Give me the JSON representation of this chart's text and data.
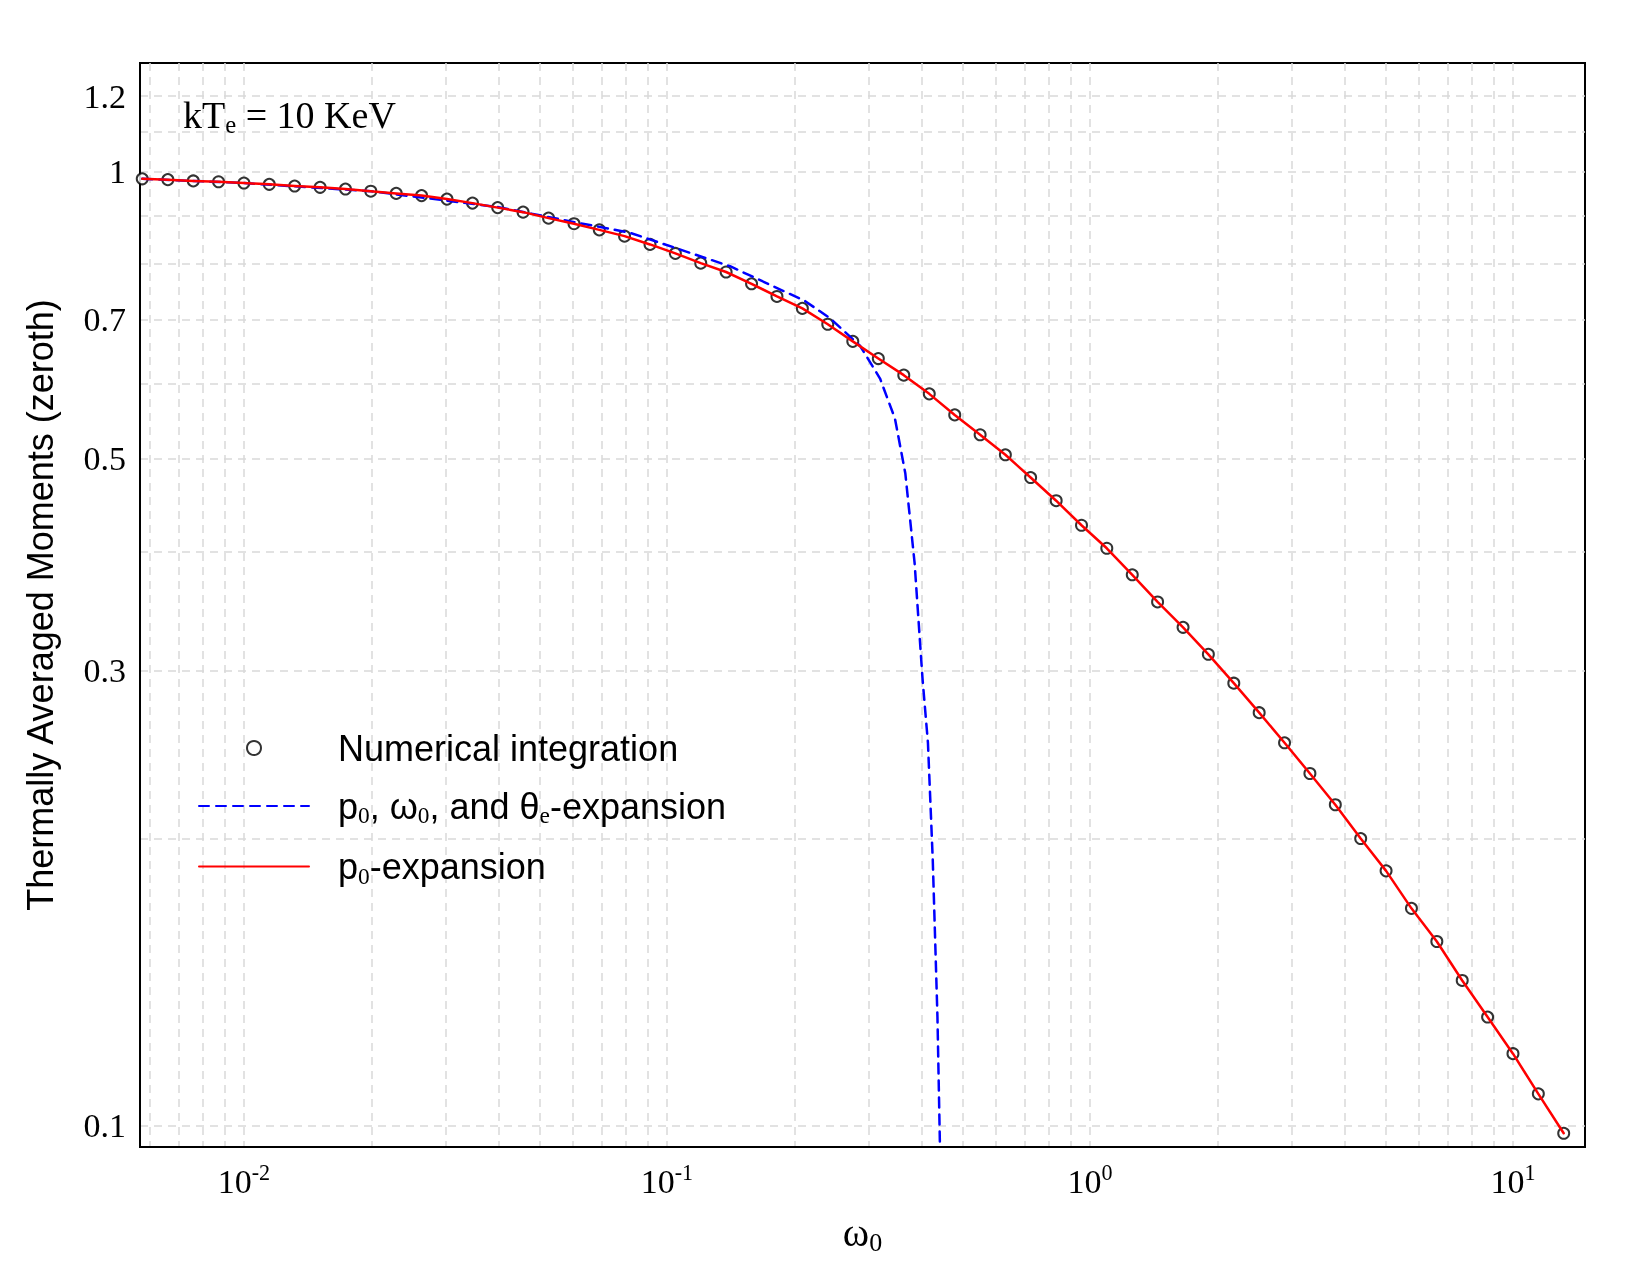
{
  "chart_data": {
    "type": "line",
    "xlabel": "ω$_{0}$",
    "ylabel": "Thermally Averaged Moments (zeroth)",
    "annotations": [
      "kT$_{e}$ = 10 KeV"
    ],
    "log": "xy",
    "grid": true,
    "legend": "bottom left",
    "xlim": [
      0.00568,
      14.8
    ],
    "ylim": [
      0.095,
      1.3
    ],
    "xticks": [
      {
        "value": 0.006,
        "label": null
      },
      {
        "value": 0.007,
        "label": null
      },
      {
        "value": 0.008,
        "label": null
      },
      {
        "value": 0.009,
        "label": null
      },
      {
        "value": 0.01,
        "label": "10$^{-2}$"
      },
      {
        "value": 0.02,
        "label": null
      },
      {
        "value": 0.03,
        "label": null
      },
      {
        "value": 0.04,
        "label": null
      },
      {
        "value": 0.05,
        "label": null
      },
      {
        "value": 0.06,
        "label": null
      },
      {
        "value": 0.07,
        "label": null
      },
      {
        "value": 0.08,
        "label": null
      },
      {
        "value": 0.09,
        "label": null
      },
      {
        "value": 0.1,
        "label": "10$^{-1}$"
      },
      {
        "value": 0.2,
        "label": null
      },
      {
        "value": 0.3,
        "label": null
      },
      {
        "value": 0.4,
        "label": null
      },
      {
        "value": 0.5,
        "label": null
      },
      {
        "value": 0.6,
        "label": null
      },
      {
        "value": 0.7,
        "label": null
      },
      {
        "value": 0.8,
        "label": null
      },
      {
        "value": 0.9,
        "label": null
      },
      {
        "value": 1,
        "label": "10$^{0}$"
      },
      {
        "value": 2,
        "label": null
      },
      {
        "value": 3,
        "label": null
      },
      {
        "value": 4,
        "label": null
      },
      {
        "value": 5,
        "label": null
      },
      {
        "value": 6,
        "label": null
      },
      {
        "value": 7,
        "label": null
      },
      {
        "value": 8,
        "label": null
      },
      {
        "value": 9,
        "label": null
      },
      {
        "value": 10,
        "label": "10$^{1}$"
      }
    ],
    "yticks": [
      0.1,
      {
        "value": 0.2,
        "label": null
      },
      0.3,
      {
        "value": 0.4,
        "label": null
      },
      0.5,
      {
        "value": 0.6,
        "label": null
      },
      0.7,
      {
        "value": 0.8,
        "label": null
      },
      {
        "value": 0.9,
        "label": null
      },
      1,
      {
        "value": 1.1,
        "label": null
      },
      1.2
    ],
    "series": [
      {
        "name": "Numerical integration",
        "type": "scatter",
        "marker": "circle",
        "color": "#000000",
        "x": [
          0.00575,
          0.00661,
          0.00759,
          0.00871,
          0.01,
          0.01148,
          0.01318,
          0.01514,
          0.01738,
          0.01995,
          0.02291,
          0.0263,
          0.0302,
          0.0347,
          0.0398,
          0.0457,
          0.0525,
          0.0603,
          0.0692,
          0.0794,
          0.0912,
          0.1047,
          0.1202,
          0.138,
          0.1585,
          0.182,
          0.209,
          0.24,
          0.275,
          0.316,
          0.363,
          0.417,
          0.479,
          0.55,
          0.631,
          0.724,
          0.832,
          0.955,
          1.096,
          1.259,
          1.445,
          1.66,
          1.905,
          2.188,
          2.512,
          2.884,
          3.311,
          3.802,
          4.365,
          5.012,
          5.754,
          6.607,
          7.586,
          8.71,
          10,
          11.48,
          13.18
        ],
        "values": [
          0.983,
          0.981,
          0.978,
          0.976,
          0.973,
          0.97,
          0.966,
          0.963,
          0.959,
          0.954,
          0.949,
          0.944,
          0.936,
          0.927,
          0.917,
          0.907,
          0.894,
          0.882,
          0.869,
          0.856,
          0.839,
          0.821,
          0.802,
          0.785,
          0.763,
          0.74,
          0.719,
          0.692,
          0.664,
          0.637,
          0.612,
          0.585,
          0.556,
          0.53,
          0.505,
          0.478,
          0.452,
          0.426,
          0.403,
          0.378,
          0.354,
          0.333,
          0.312,
          0.291,
          0.271,
          0.252,
          0.234,
          0.217,
          0.2,
          0.185,
          0.169,
          0.156,
          0.142,
          0.13,
          0.119,
          0.108,
          0.0982
        ]
      },
      {
        "name": "p$_{0}$, ω$_{0}$, and θ$_{e}$-expansion",
        "marker": "none",
        "line_style": "dashed",
        "color": "#0000ff",
        "x": [
          0.00575,
          0.01,
          0.02,
          0.04,
          0.06,
          0.0818,
          0.141,
          0.212,
          0.243,
          0.286,
          0.319,
          0.346,
          0.366,
          0.385,
          0.402,
          0.414,
          0.425,
          0.436,
          0.442
        ],
        "values": [
          0.983,
          0.973,
          0.954,
          0.918,
          0.886,
          0.863,
          0.796,
          0.732,
          0.702,
          0.657,
          0.607,
          0.551,
          0.483,
          0.389,
          0.294,
          0.252,
          0.19,
          0.13,
          0.095
        ]
      },
      {
        "name": "p$_{0}$-expansion",
        "marker": "none",
        "line_style": "solid",
        "color": "#ff0000",
        "x": [
          0.00575,
          0.00661,
          0.00759,
          0.00871,
          0.01,
          0.01148,
          0.01318,
          0.01514,
          0.01738,
          0.01995,
          0.02291,
          0.0263,
          0.0302,
          0.0347,
          0.0398,
          0.0457,
          0.0525,
          0.0603,
          0.0692,
          0.0794,
          0.0912,
          0.1047,
          0.1202,
          0.138,
          0.1585,
          0.182,
          0.209,
          0.24,
          0.275,
          0.316,
          0.363,
          0.417,
          0.479,
          0.55,
          0.631,
          0.724,
          0.832,
          0.955,
          1.096,
          1.259,
          1.445,
          1.66,
          1.905,
          2.188,
          2.512,
          2.884,
          3.311,
          3.802,
          4.365,
          5.012,
          5.754,
          6.607,
          7.586,
          8.71,
          10,
          11.48,
          13.18
        ],
        "values": [
          0.983,
          0.981,
          0.978,
          0.976,
          0.973,
          0.97,
          0.966,
          0.963,
          0.959,
          0.954,
          0.949,
          0.944,
          0.936,
          0.927,
          0.917,
          0.907,
          0.894,
          0.882,
          0.869,
          0.856,
          0.839,
          0.821,
          0.802,
          0.785,
          0.763,
          0.74,
          0.719,
          0.692,
          0.664,
          0.637,
          0.612,
          0.585,
          0.556,
          0.53,
          0.505,
          0.478,
          0.452,
          0.426,
          0.403,
          0.378,
          0.354,
          0.333,
          0.312,
          0.291,
          0.271,
          0.252,
          0.234,
          0.217,
          0.2,
          0.185,
          0.169,
          0.156,
          0.142,
          0.13,
          0.119,
          0.108,
          0.0982
        ]
      }
    ]
  }
}
